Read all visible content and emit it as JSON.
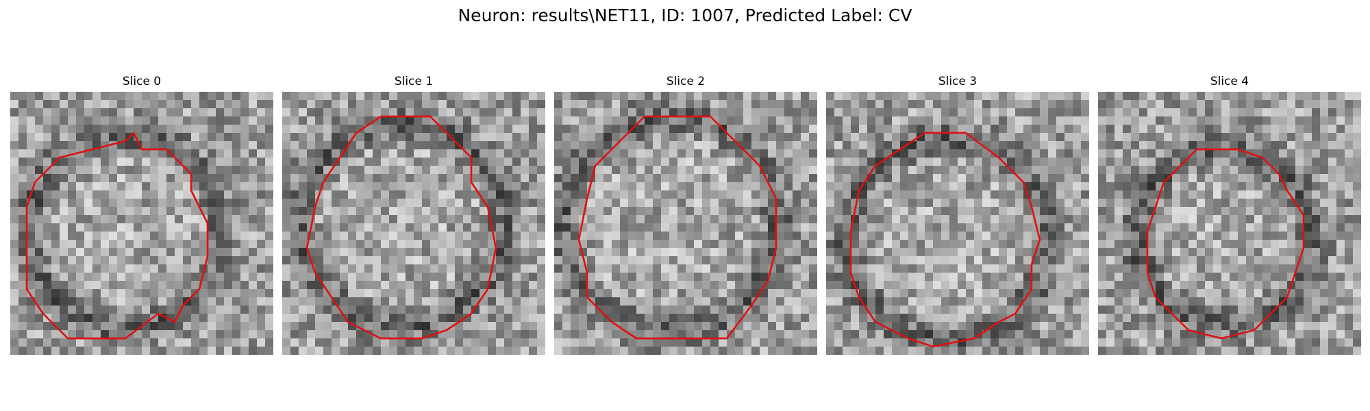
{
  "figure": {
    "title": "Neuron: results\\NET11, ID: 1007, Predicted Label: CV"
  },
  "panels": [
    {
      "title": "Slice 0",
      "seed": 11,
      "contour": [
        [
          14,
          6
        ],
        [
          15,
          5
        ],
        [
          16,
          7
        ],
        [
          19,
          7
        ],
        [
          22,
          10
        ],
        [
          22,
          12
        ],
        [
          23,
          14
        ],
        [
          24,
          16
        ],
        [
          24,
          20
        ],
        [
          23,
          24
        ],
        [
          21,
          26
        ],
        [
          20,
          28
        ],
        [
          18,
          27
        ],
        [
          14,
          30
        ],
        [
          11,
          30
        ],
        [
          7,
          30
        ],
        [
          4,
          27
        ],
        [
          2,
          24
        ],
        [
          2,
          20
        ],
        [
          2,
          14
        ],
        [
          3,
          11
        ],
        [
          6,
          8
        ],
        [
          10,
          7
        ],
        [
          14,
          6
        ]
      ]
    },
    {
      "title": "Slice 1",
      "seed": 23,
      "contour": [
        [
          12,
          3
        ],
        [
          18,
          3
        ],
        [
          21,
          6
        ],
        [
          23,
          8
        ],
        [
          23,
          11
        ],
        [
          25,
          14
        ],
        [
          26,
          19
        ],
        [
          25,
          24
        ],
        [
          23,
          27
        ],
        [
          20,
          29
        ],
        [
          17,
          30
        ],
        [
          12,
          30
        ],
        [
          8,
          28
        ],
        [
          6,
          25
        ],
        [
          4,
          22
        ],
        [
          3,
          19
        ],
        [
          4,
          14
        ],
        [
          5,
          11
        ],
        [
          7,
          8
        ],
        [
          9,
          5
        ],
        [
          12,
          3
        ]
      ]
    },
    {
      "title": "Slice 2",
      "seed": 37,
      "contour": [
        [
          11,
          3
        ],
        [
          19,
          3
        ],
        [
          22,
          6
        ],
        [
          25,
          9
        ],
        [
          27,
          13
        ],
        [
          27,
          19
        ],
        [
          26,
          23
        ],
        [
          24,
          26
        ],
        [
          21,
          30
        ],
        [
          16,
          30
        ],
        [
          10,
          30
        ],
        [
          7,
          28
        ],
        [
          4,
          25
        ],
        [
          4,
          22
        ],
        [
          3,
          18
        ],
        [
          4,
          13
        ],
        [
          5,
          9
        ],
        [
          7,
          7
        ],
        [
          9,
          5
        ],
        [
          11,
          3
        ]
      ]
    },
    {
      "title": "Slice 3",
      "seed": 51,
      "contour": [
        [
          12,
          5
        ],
        [
          17,
          5
        ],
        [
          21,
          8
        ],
        [
          24,
          11
        ],
        [
          25,
          14
        ],
        [
          26,
          18
        ],
        [
          25,
          21
        ],
        [
          25,
          24
        ],
        [
          23,
          27
        ],
        [
          21,
          28
        ],
        [
          18,
          30
        ],
        [
          13,
          31
        ],
        [
          10,
          30
        ],
        [
          6,
          28
        ],
        [
          4,
          25
        ],
        [
          3,
          22
        ],
        [
          3,
          17
        ],
        [
          4,
          12
        ],
        [
          6,
          9
        ],
        [
          9,
          7
        ],
        [
          12,
          5
        ]
      ]
    },
    {
      "title": "Slice 4",
      "seed": 64,
      "contour": [
        [
          12,
          7
        ],
        [
          17,
          7
        ],
        [
          20,
          8
        ],
        [
          22,
          10
        ],
        [
          23,
          12
        ],
        [
          25,
          15
        ],
        [
          25,
          19
        ],
        [
          24,
          22
        ],
        [
          23,
          25
        ],
        [
          21,
          27
        ],
        [
          19,
          29
        ],
        [
          15,
          30
        ],
        [
          11,
          29
        ],
        [
          9,
          27
        ],
        [
          7,
          25
        ],
        [
          6,
          22
        ],
        [
          6,
          17
        ],
        [
          7,
          14
        ],
        [
          8,
          11
        ],
        [
          10,
          9
        ],
        [
          12,
          7
        ]
      ]
    }
  ]
}
